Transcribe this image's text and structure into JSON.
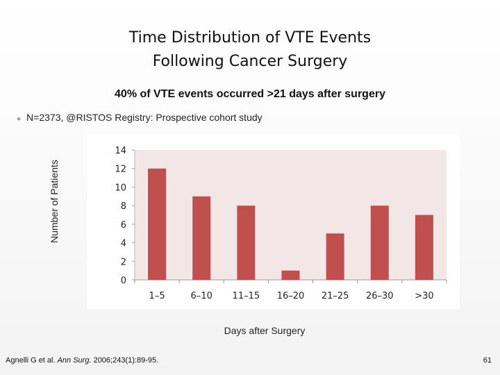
{
  "slide": {
    "title_line1": "Time Distribution of VTE Events",
    "title_line2": "Following Cancer Surgery",
    "subtitle": "40% of VTE events occurred >21 days after surgery",
    "bullet": "N=2373, @RISTOS Registry: Prospective cohort study",
    "citation_authors": "Agnelli G et al. ",
    "citation_journal": "Ann Surg.",
    "citation_rest": " 2006;243(1):89-95.",
    "page_number": "61"
  },
  "chart_data": {
    "type": "bar",
    "categories": [
      "1–5",
      "6–10",
      "11–15",
      "16–20",
      "21–25",
      "26–30",
      ">30"
    ],
    "values": [
      12,
      9,
      8,
      1,
      5,
      8,
      7
    ],
    "xlabel": "Days after Surgery",
    "ylabel": "Number of Patients",
    "ylim": [
      0,
      14
    ],
    "yticks": [
      0,
      2,
      4,
      6,
      8,
      10,
      12,
      14
    ],
    "grid": false,
    "bar_color": "#c0504d",
    "plot_background": "#f2e6e6"
  }
}
